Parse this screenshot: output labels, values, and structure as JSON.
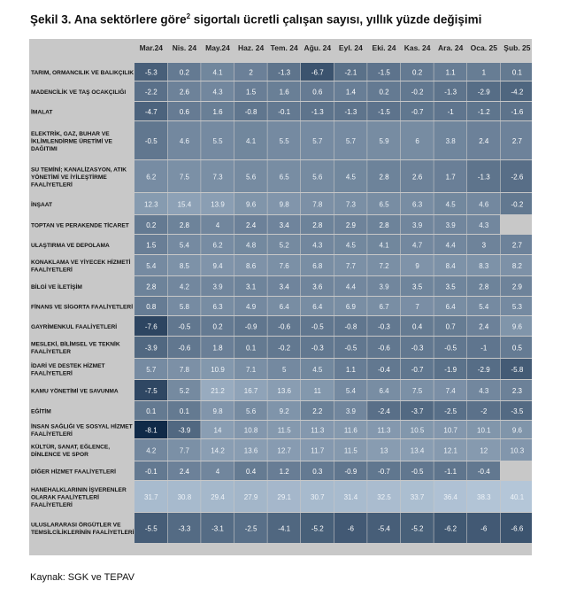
{
  "title": {
    "text": "Şekil 3. Ana sektörlere göre",
    "sup": "2",
    "rest": " sigortalı ücretli çalışan sayısı, yıllık yüzde değişimi"
  },
  "source": "Kaynak: SGK ve TEPAV",
  "colors": {
    "panel": "#c8c8c8",
    "light": "#b4c6d8",
    "dark": "#102a48"
  },
  "chart_data": {
    "type": "heatmap",
    "columns": [
      "Mar.24",
      "Nis. 24",
      "May.24",
      "Haz. 24",
      "Tem. 24",
      "Ağu. 24",
      "Eyl. 24",
      "Eki. 24",
      "Kas. 24",
      "Ara. 24",
      "Oca. 25",
      "Şub. 25"
    ],
    "rows": [
      {
        "label": [
          "TARIM, ORMANCILIK VE BALIKÇILIK"
        ],
        "values": [
          -5.3,
          0.2,
          4.1,
          2,
          -1.3,
          -6.7,
          -2.1,
          -1.5,
          0.2,
          1.1,
          1,
          0.1
        ]
      },
      {
        "label": [
          "MADENCİLİK VE TAŞ OCAKÇILIĞI"
        ],
        "values": [
          -2.2,
          2.6,
          4.3,
          1.5,
          1.6,
          0.6,
          1.4,
          0.2,
          -0.2,
          -1.3,
          -2.9,
          -4.2
        ]
      },
      {
        "label": [
          "İMALAT"
        ],
        "values": [
          -4.7,
          0.6,
          1.6,
          -0.8,
          -0.1,
          -1.3,
          -1.3,
          -1.5,
          -0.7,
          -1,
          -1.2,
          -1.6
        ]
      },
      {
        "label": [
          "ELEKTRİK, GAZ, BUHAR VE",
          "İKLİMLENDİRME ÜRETİMİ VE",
          "DAĞITIMI"
        ],
        "values": [
          -0.5,
          4.6,
          5.5,
          4.1,
          5.5,
          5.7,
          5.7,
          5.9,
          6,
          3.8,
          2.4,
          2.7
        ]
      },
      {
        "label": [
          "SU TEMİNİ; KANALİZASYON, ATIK",
          "YÖNETİMİ VE İYİLEŞTİRME",
          "FAALİYETLERİ"
        ],
        "values": [
          6.2,
          7.5,
          7.3,
          5.6,
          6.5,
          5.6,
          4.5,
          2.8,
          2.6,
          1.7,
          -1.3,
          -2.6
        ]
      },
      {
        "label": [
          "İNŞAAT"
        ],
        "values": [
          12.3,
          15.4,
          13.9,
          9.6,
          9.8,
          7.8,
          7.3,
          6.5,
          6.3,
          4.5,
          4.6,
          -0.2
        ]
      },
      {
        "label": [
          "TOPTAN VE PERAKENDE TİCARET"
        ],
        "values": [
          0.2,
          2.8,
          4,
          2.4,
          3.4,
          2.8,
          2.9,
          2.8,
          3.9,
          3.9,
          4.3,
          null
        ]
      },
      {
        "label": [
          "ULAŞTIRMA VE DEPOLAMA"
        ],
        "values": [
          1.5,
          5.4,
          6.2,
          4.8,
          5.2,
          4.3,
          4.5,
          4.1,
          4.7,
          4.4,
          3,
          2.7
        ]
      },
      {
        "label": [
          "KONAKLAMA VE YİYECEK HİZMETİ",
          "FAALİYETLERİ"
        ],
        "values": [
          5.4,
          8.5,
          9.4,
          8.6,
          7.6,
          6.8,
          7.7,
          7.2,
          9,
          8.4,
          8.3,
          8.2
        ]
      },
      {
        "label": [
          "BİLGİ VE İLETİŞİM"
        ],
        "values": [
          2.8,
          4.2,
          3.9,
          3.1,
          3.4,
          3.6,
          4.4,
          3.9,
          3.5,
          3.5,
          2.8,
          2.9
        ]
      },
      {
        "label": [
          "FİNANS VE SİGORTA FAALİYETLERİ"
        ],
        "values": [
          0.8,
          5.8,
          6.3,
          4.9,
          6.4,
          6.4,
          6.9,
          6.7,
          7,
          6.4,
          5.4,
          5.3
        ]
      },
      {
        "label": [
          "GAYRİMENKUL FAALİYETLERİ"
        ],
        "values": [
          -7.6,
          -0.5,
          0.2,
          -0.9,
          -0.6,
          -0.5,
          -0.8,
          -0.3,
          0.4,
          0.7,
          2.4,
          9.6
        ]
      },
      {
        "label": [
          "MESLEKİ, BİLİMSEL VE TEKNİK",
          "FAALİYETLER"
        ],
        "values": [
          -3.9,
          -0.6,
          1.8,
          0.1,
          -0.2,
          -0.3,
          -0.5,
          -0.6,
          -0.3,
          -0.5,
          -1,
          0.5
        ]
      },
      {
        "label": [
          "İDARİ VE DESTEK HİZMET",
          "FAALİYETLERİ"
        ],
        "values": [
          5.7,
          7.8,
          10.9,
          7.1,
          5,
          4.5,
          1.1,
          -0.4,
          -0.7,
          -1.9,
          -2.9,
          -5.8
        ]
      },
      {
        "label": [
          "KAMU YÖNETİMİ VE SAVUNMA"
        ],
        "values": [
          -7.5,
          5.2,
          21.2,
          16.7,
          13.6,
          11,
          5.4,
          6.4,
          7.5,
          7.4,
          4.3,
          2.3
        ]
      },
      {
        "label": [
          "EĞİTİM"
        ],
        "values": [
          0.1,
          0.1,
          9.8,
          5.6,
          9.2,
          2.2,
          3.9,
          -2.4,
          -3.7,
          -2.5,
          -2,
          -3.5
        ]
      },
      {
        "label": [
          "İNSAN SAĞLIĞI VE SOSYAL HİZMET",
          "FAALİYETLERİ"
        ],
        "values": [
          -8.1,
          -3.9,
          14,
          10.8,
          11.5,
          11.3,
          11.6,
          11.3,
          10.5,
          10.7,
          10.1,
          9.6
        ]
      },
      {
        "label": [
          "KÜLTÜR, SANAT, EĞLENCE,",
          "DİNLENCE VE SPOR"
        ],
        "values": [
          4.2,
          7.7,
          14.2,
          13.6,
          12.7,
          11.7,
          11.5,
          13,
          13.4,
          12.1,
          12,
          10.3
        ]
      },
      {
        "label": [
          "DİĞER HİZMET FAALİYETLERİ"
        ],
        "values": [
          -0.1,
          2.4,
          4,
          0.4,
          1.2,
          0.3,
          -0.9,
          -0.7,
          -0.5,
          -1.1,
          -0.4,
          null
        ]
      },
      {
        "label": [
          "HANEHALKLARININ İŞVERENLER",
          "OLARAK FAALİYETLERİ",
          "FAALİYETLERİ"
        ],
        "values": [
          31.7,
          30.8,
          29.4,
          27.9,
          29.1,
          30.7,
          31.4,
          32.5,
          33.7,
          36.4,
          38.3,
          40.1
        ]
      },
      {
        "label": [
          "ULUSLARARASI ÖRGÜTLER VE",
          "TEMSİLCİLİKLERİNİN FAALİYETLERİ"
        ],
        "values": [
          -5.5,
          -3.3,
          -3.1,
          -2.5,
          -4.1,
          -5.2,
          -6,
          -5.4,
          -5.2,
          -6.2,
          -6,
          -6.6
        ]
      }
    ]
  }
}
